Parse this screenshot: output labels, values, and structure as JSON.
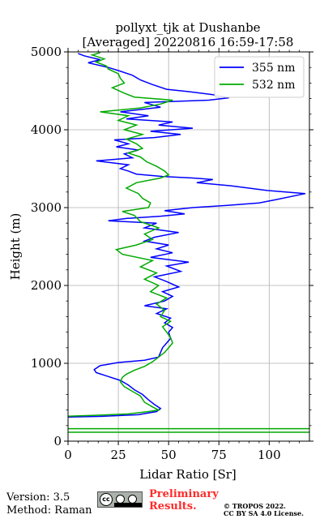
{
  "chart_data": {
    "type": "line",
    "title_line1": "pollyxt_tjk at Dushanbe",
    "title_line2": "[Averaged] 20220816 16:59-17:58",
    "xlabel": "Lidar Ratio [Sr]",
    "ylabel": "Height (m)",
    "xlim": [
      0,
      120
    ],
    "ylim": [
      0,
      5000
    ],
    "x_ticks": [
      0,
      25,
      50,
      75,
      100
    ],
    "y_ticks": [
      0,
      1000,
      2000,
      3000,
      4000,
      5000
    ],
    "grid": true,
    "legend_position": "top-right",
    "series": [
      {
        "name": "355 nm",
        "color": "#0000ff",
        "points": [
          [
            0,
            310
          ],
          [
            18,
            320
          ],
          [
            35,
            340
          ],
          [
            44,
            380
          ],
          [
            46,
            420
          ],
          [
            43,
            470
          ],
          [
            40,
            530
          ],
          [
            37,
            600
          ],
          [
            33,
            660
          ],
          [
            30,
            720
          ],
          [
            26,
            780
          ],
          [
            20,
            830
          ],
          [
            14,
            880
          ],
          [
            13,
            920
          ],
          [
            16,
            970
          ],
          [
            25,
            1010
          ],
          [
            38,
            1040
          ],
          [
            45,
            1080
          ],
          [
            46,
            1140
          ],
          [
            47,
            1200
          ],
          [
            49,
            1260
          ],
          [
            51,
            1320
          ],
          [
            50,
            1400
          ],
          [
            52,
            1460
          ],
          [
            48,
            1520
          ],
          [
            51,
            1580
          ],
          [
            44,
            1640
          ],
          [
            49,
            1700
          ],
          [
            38,
            1740
          ],
          [
            48,
            1800
          ],
          [
            52,
            1860
          ],
          [
            47,
            1920
          ],
          [
            55,
            1980
          ],
          [
            49,
            2050
          ],
          [
            43,
            2110
          ],
          [
            56,
            2180
          ],
          [
            49,
            2250
          ],
          [
            60,
            2300
          ],
          [
            41,
            2360
          ],
          [
            52,
            2420
          ],
          [
            44,
            2470
          ],
          [
            50,
            2520
          ],
          [
            38,
            2570
          ],
          [
            43,
            2620
          ],
          [
            55,
            2680
          ],
          [
            38,
            2740
          ],
          [
            44,
            2800
          ],
          [
            20,
            2830
          ],
          [
            29,
            2860
          ],
          [
            46,
            2890
          ],
          [
            58,
            2920
          ],
          [
            48,
            2960
          ],
          [
            62,
            3000
          ],
          [
            80,
            3030
          ],
          [
            95,
            3060
          ],
          [
            103,
            3100
          ],
          [
            118,
            3180
          ],
          [
            99,
            3220
          ],
          [
            81,
            3280
          ],
          [
            64,
            3320
          ],
          [
            72,
            3360
          ],
          [
            62,
            3380
          ],
          [
            47,
            3400
          ],
          [
            34,
            3430
          ],
          [
            30,
            3470
          ],
          [
            26,
            3500
          ],
          [
            30,
            3550
          ],
          [
            14,
            3600
          ],
          [
            32,
            3640
          ],
          [
            28,
            3690
          ],
          [
            35,
            3740
          ],
          [
            24,
            3780
          ],
          [
            30,
            3820
          ],
          [
            23,
            3870
          ],
          [
            43,
            3900
          ],
          [
            56,
            3940
          ],
          [
            41,
            3980
          ],
          [
            62,
            4020
          ],
          [
            45,
            4060
          ],
          [
            52,
            4100
          ],
          [
            29,
            4140
          ],
          [
            40,
            4180
          ],
          [
            26,
            4230
          ],
          [
            46,
            4290
          ],
          [
            38,
            4350
          ],
          [
            70,
            4380
          ],
          [
            80,
            4410
          ],
          [
            72,
            4450
          ],
          [
            60,
            4490
          ],
          [
            49,
            4520
          ],
          [
            42,
            4580
          ],
          [
            36,
            4640
          ],
          [
            32,
            4700
          ],
          [
            25,
            4760
          ],
          [
            20,
            4800
          ],
          [
            10,
            4860
          ],
          [
            16,
            4900
          ],
          [
            8,
            4950
          ],
          [
            5,
            4980
          ]
        ]
      },
      {
        "name": "532 nm",
        "color": "#00aa00",
        "points": [
          [
            0,
            320
          ],
          [
            12,
            330
          ],
          [
            30,
            350
          ],
          [
            40,
            380
          ],
          [
            45,
            400
          ],
          [
            42,
            440
          ],
          [
            38,
            500
          ],
          [
            36,
            580
          ],
          [
            32,
            640
          ],
          [
            28,
            700
          ],
          [
            26,
            760
          ],
          [
            27,
            820
          ],
          [
            29,
            860
          ],
          [
            33,
            910
          ],
          [
            38,
            960
          ],
          [
            42,
            1020
          ],
          [
            45,
            1080
          ],
          [
            48,
            1140
          ],
          [
            50,
            1200
          ],
          [
            52,
            1260
          ],
          [
            51,
            1330
          ],
          [
            49,
            1400
          ],
          [
            47,
            1470
          ],
          [
            51,
            1540
          ],
          [
            46,
            1600
          ],
          [
            48,
            1680
          ],
          [
            44,
            1760
          ],
          [
            49,
            1840
          ],
          [
            41,
            1920
          ],
          [
            45,
            2000
          ],
          [
            38,
            2080
          ],
          [
            44,
            2160
          ],
          [
            36,
            2240
          ],
          [
            42,
            2320
          ],
          [
            27,
            2400
          ],
          [
            24,
            2460
          ],
          [
            34,
            2520
          ],
          [
            42,
            2590
          ],
          [
            38,
            2660
          ],
          [
            45,
            2740
          ],
          [
            36,
            2820
          ],
          [
            33,
            2900
          ],
          [
            27,
            2950
          ],
          [
            40,
            3000
          ],
          [
            41,
            3060
          ],
          [
            37,
            3120
          ],
          [
            35,
            3180
          ],
          [
            29,
            3250
          ],
          [
            34,
            3320
          ],
          [
            46,
            3380
          ],
          [
            50,
            3420
          ],
          [
            48,
            3470
          ],
          [
            44,
            3530
          ],
          [
            39,
            3590
          ],
          [
            36,
            3650
          ],
          [
            30,
            3700
          ],
          [
            37,
            3760
          ],
          [
            34,
            3820
          ],
          [
            29,
            3880
          ],
          [
            37,
            3940
          ],
          [
            28,
            4000
          ],
          [
            34,
            4060
          ],
          [
            25,
            4120
          ],
          [
            30,
            4180
          ],
          [
            16,
            4230
          ],
          [
            36,
            4280
          ],
          [
            46,
            4330
          ],
          [
            52,
            4380
          ],
          [
            33,
            4420
          ],
          [
            28,
            4470
          ],
          [
            22,
            4540
          ],
          [
            28,
            4600
          ],
          [
            26,
            4660
          ],
          [
            25,
            4720
          ],
          [
            20,
            4780
          ],
          [
            19,
            4820
          ],
          [
            14,
            4870
          ],
          [
            18,
            4910
          ],
          [
            12,
            4960
          ],
          [
            16,
            4990
          ]
        ]
      },
      {
        "name": "",
        "color": "#00aa00",
        "points": [
          [
            0,
            160
          ],
          [
            120,
            160
          ]
        ]
      },
      {
        "name": "",
        "color": "#00aa00",
        "points": [
          [
            0,
            115
          ],
          [
            120,
            115
          ]
        ]
      }
    ]
  },
  "footer": {
    "version": "Version: 3.5",
    "method": "Method: Raman",
    "preliminary_line1": "Preliminary",
    "preliminary_line2": "Results.",
    "copyright_line1": "© TROPOS 2022.",
    "copyright_line2": "CC BY SA 4.0 License.",
    "badge_cc": "cc",
    "badge_text": "BY SA"
  }
}
